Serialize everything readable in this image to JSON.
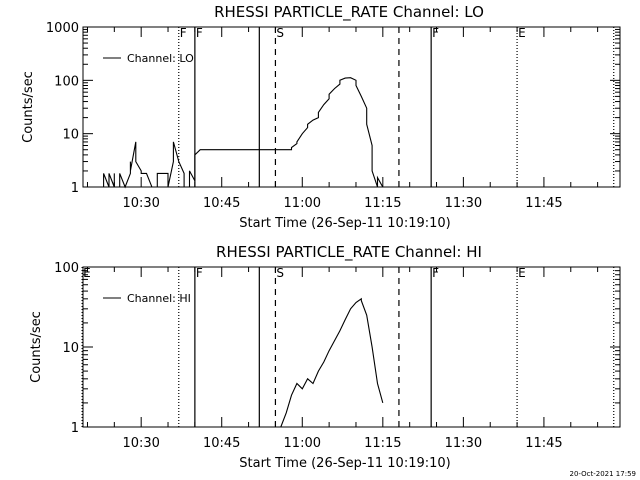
{
  "chart_data": [
    {
      "type": "line",
      "title": "RHESSI PARTICLE_RATE Channel: LO",
      "xlabel": "Start Time (26-Sep-11 10:19:10)",
      "ylabel": "Counts/sec",
      "yscale": "log",
      "ylim": [
        1,
        1000
      ],
      "yticks": [
        "1",
        "10",
        "100",
        "1000"
      ],
      "xlim": [
        "10:19:10",
        "11:59:10"
      ],
      "xticks": [
        "10:30",
        "10:45",
        "11:00",
        "11:15",
        "11:30",
        "11:45"
      ],
      "legend": "top-left",
      "grid": false,
      "line_color": "#000000",
      "series": [
        {
          "name": "Channel: LO",
          "x": [
            "10:23",
            "10:23",
            "10:23",
            "10:23",
            "10:24",
            "10:24",
            "10:25",
            "10:25",
            "10:25",
            "10:26",
            "10:26",
            "10:26",
            "10:26",
            "10:27",
            "10:27",
            "10:28",
            "10:28",
            "10:28",
            "10:29",
            "10:29",
            "10:30",
            "10:30",
            "10:31",
            "10:32",
            "10:32",
            "10:33",
            "10:33",
            "10:34",
            "10:34",
            "10:35",
            "10:35",
            "10:36",
            "10:36",
            "10:37",
            "10:38",
            "10:38",
            "10:39",
            "10:39",
            "10:39",
            "10:40",
            "10:40",
            "10:41",
            "10:57",
            "10:58",
            "10:58",
            "10:59",
            "10:59",
            "10:59",
            "11:00",
            "11:01",
            "11:01",
            "11:02",
            "11:03",
            "11:03",
            "11:04",
            "11:05",
            "11:05",
            "11:06",
            "11:07",
            "11:07",
            "11:08",
            "11:09",
            "11:10",
            "11:10",
            "11:11",
            "11:12",
            "11:12",
            "11:13",
            "11:13",
            "11:13",
            "11:14",
            "11:14",
            "11:15",
            "11:17",
            "11:17"
          ],
          "values": [
            1,
            1.8,
            1,
            1.8,
            1,
            1.8,
            1,
            1.8,
            1,
            1,
            1.8,
            1,
            1.8,
            1,
            1,
            1.8,
            3,
            2,
            7,
            3,
            2,
            1.8,
            1.8,
            1,
            1,
            1,
            1.8,
            1.8,
            1.8,
            1.8,
            1,
            3,
            7,
            3,
            1.8,
            1,
            1,
            1.8,
            2,
            1.3,
            4,
            5,
            5,
            5,
            5.5,
            6.5,
            6.5,
            7,
            10,
            13,
            15,
            18,
            20,
            25,
            35,
            45,
            55,
            70,
            85,
            100,
            110,
            112,
            100,
            80,
            50,
            30,
            15,
            6,
            4,
            2,
            1,
            1.5,
            1,
            1,
            1
          ]
        }
      ],
      "markers": [
        {
          "label": "F",
          "time": "10:37",
          "style": "dotted"
        },
        {
          "label": "F",
          "time": "10:40",
          "style": "solid"
        },
        {
          "label": "",
          "time": "10:52",
          "style": "solid"
        },
        {
          "label": "S",
          "time": "10:55",
          "style": "dashed"
        },
        {
          "label": "",
          "time": "11:18",
          "style": "dashed"
        },
        {
          "label": "F",
          "time": "11:24",
          "style": "solid"
        },
        {
          "label": "E",
          "time": "11:40",
          "style": "dotted"
        },
        {
          "label": "",
          "time": "11:58",
          "style": "dotted"
        }
      ]
    },
    {
      "type": "line",
      "title": "RHESSI PARTICLE_RATE Channel: HI",
      "xlabel": "Start Time (26-Sep-11 10:19:10)",
      "ylabel": "Counts/sec",
      "yscale": "log",
      "ylim": [
        1,
        100
      ],
      "yticks": [
        "1",
        "10",
        "100"
      ],
      "xlim": [
        "10:19:10",
        "11:59:10"
      ],
      "xticks": [
        "10:30",
        "10:45",
        "11:00",
        "11:15",
        "11:30",
        "11:45"
      ],
      "legend": "top-left",
      "grid": false,
      "line_color": "#000000",
      "series": [
        {
          "name": "Channel: HI",
          "x": [
            "10:56",
            "10:57",
            "10:58",
            "10:59",
            "11:00",
            "11:01",
            "11:02",
            "11:03",
            "11:04",
            "11:05",
            "11:06",
            "11:07",
            "11:08",
            "11:09",
            "11:10",
            "11:11",
            "11:11",
            "11:12",
            "11:13",
            "11:14",
            "11:15"
          ],
          "values": [
            1,
            1.5,
            2.5,
            3.5,
            3,
            4,
            3.5,
            5,
            6.5,
            9,
            12,
            16,
            22,
            30,
            36,
            40,
            38,
            25,
            10,
            3.5,
            2
          ]
        }
      ],
      "markers": [
        {
          "label": "E",
          "time": "10:19",
          "style": "dotted"
        },
        {
          "label": "",
          "time": "10:37",
          "style": "dotted"
        },
        {
          "label": "F",
          "time": "10:40",
          "style": "solid"
        },
        {
          "label": "",
          "time": "10:52",
          "style": "solid"
        },
        {
          "label": "S",
          "time": "10:55",
          "style": "dashed"
        },
        {
          "label": "",
          "time": "11:18",
          "style": "dashed"
        },
        {
          "label": "F",
          "time": "11:24",
          "style": "solid"
        },
        {
          "label": "E",
          "time": "11:40",
          "style": "dotted"
        },
        {
          "label": "",
          "time": "11:58",
          "style": "dotted"
        }
      ]
    }
  ],
  "timestamp": "20-Oct-2021 17:59"
}
